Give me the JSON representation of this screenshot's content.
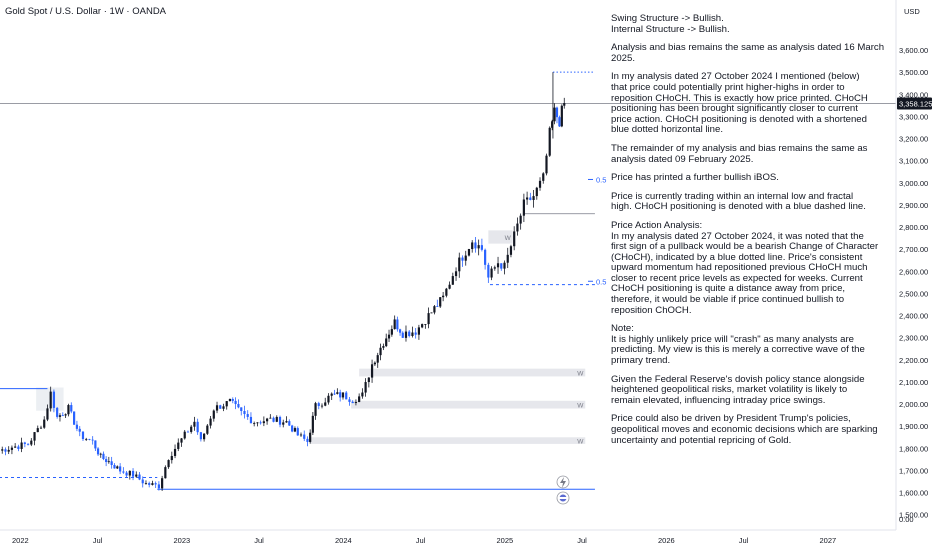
{
  "header": {
    "title": "Gold Spot / U.S. Dollar · 1W · OANDA"
  },
  "axis": {
    "currency": "USD"
  },
  "chart_data": {
    "type": "candlestick",
    "title": "Gold Spot / U.S. Dollar · 1W · OANDA",
    "ylabel": "USD",
    "ylim": [
      1450,
      3680
    ],
    "y_ticks": [
      "3,600.00",
      "3,500.00",
      "3,400.00",
      "3,300.00",
      "3,200.00",
      "3,100.00",
      "3,000.00",
      "2,900.00",
      "2,800.00",
      "2,700.00",
      "2,600.00",
      "2,500.00",
      "2,400.00",
      "2,300.00",
      "2,200.00",
      "2,100.00",
      "2,000.00",
      "1,900.00",
      "1,800.00",
      "1,700.00",
      "1,600.00",
      "1,500.00"
    ],
    "y_tick_values": [
      3600,
      3500,
      3400,
      3300,
      3200,
      3100,
      3000,
      2900,
      2800,
      2700,
      2600,
      2500,
      2400,
      2300,
      2200,
      2100,
      2000,
      1900,
      1800,
      1700,
      1600,
      1500
    ],
    "extra_tick": "0.00",
    "x_ticks": [
      {
        "label": "2022",
        "t": 2022.0
      },
      {
        "label": "Jul",
        "t": 2022.5
      },
      {
        "label": "2023",
        "t": 2023.0
      },
      {
        "label": "Jul",
        "t": 2023.5
      },
      {
        "label": "2024",
        "t": 2024.0
      },
      {
        "label": "Jul",
        "t": 2024.5
      },
      {
        "label": "2025",
        "t": 2025.0
      },
      {
        "label": "Jul",
        "t": 2025.5
      },
      {
        "label": "2026",
        "t": 2026.0
      },
      {
        "label": "Jul",
        "t": 2026.5
      },
      {
        "label": "2027",
        "t": 2027.0
      }
    ],
    "last_price": 3358.125,
    "last_price_label": "3,358.125",
    "key_points": [
      {
        "t": 2021.87,
        "price": 1790
      },
      {
        "t": 2021.95,
        "price": 1805
      },
      {
        "t": 2022.05,
        "price": 1820
      },
      {
        "t": 2022.15,
        "price": 1930
      },
      {
        "t": 2022.19,
        "price": 2050
      },
      {
        "t": 2022.23,
        "price": 1940
      },
      {
        "t": 2022.3,
        "price": 1980
      },
      {
        "t": 2022.37,
        "price": 1860
      },
      {
        "t": 2022.45,
        "price": 1830
      },
      {
        "t": 2022.5,
        "price": 1760
      },
      {
        "t": 2022.55,
        "price": 1740
      },
      {
        "t": 2022.62,
        "price": 1700
      },
      {
        "t": 2022.7,
        "price": 1680
      },
      {
        "t": 2022.78,
        "price": 1640
      },
      {
        "t": 2022.86,
        "price": 1630
      },
      {
        "t": 2022.92,
        "price": 1760
      },
      {
        "t": 2023.0,
        "price": 1840
      },
      {
        "t": 2023.08,
        "price": 1920
      },
      {
        "t": 2023.12,
        "price": 1830
      },
      {
        "t": 2023.2,
        "price": 1980
      },
      {
        "t": 2023.3,
        "price": 2010
      },
      {
        "t": 2023.37,
        "price": 1960
      },
      {
        "t": 2023.45,
        "price": 1920
      },
      {
        "t": 2023.55,
        "price": 1930
      },
      {
        "t": 2023.65,
        "price": 1920
      },
      {
        "t": 2023.72,
        "price": 1860
      },
      {
        "t": 2023.78,
        "price": 1830
      },
      {
        "t": 2023.83,
        "price": 1990
      },
      {
        "t": 2023.93,
        "price": 2040
      },
      {
        "t": 2024.0,
        "price": 2040
      },
      {
        "t": 2024.06,
        "price": 2020
      },
      {
        "t": 2024.12,
        "price": 2040
      },
      {
        "t": 2024.18,
        "price": 2180
      },
      {
        "t": 2024.25,
        "price": 2280
      },
      {
        "t": 2024.32,
        "price": 2370
      },
      {
        "t": 2024.37,
        "price": 2320
      },
      {
        "t": 2024.45,
        "price": 2330
      },
      {
        "t": 2024.53,
        "price": 2400
      },
      {
        "t": 2024.62,
        "price": 2480
      },
      {
        "t": 2024.7,
        "price": 2620
      },
      {
        "t": 2024.8,
        "price": 2740
      },
      {
        "t": 2024.86,
        "price": 2700
      },
      {
        "t": 2024.9,
        "price": 2570
      },
      {
        "t": 2024.96,
        "price": 2640
      },
      {
        "t": 2025.0,
        "price": 2620
      },
      {
        "t": 2025.06,
        "price": 2760
      },
      {
        "t": 2025.12,
        "price": 2900
      },
      {
        "t": 2025.18,
        "price": 2940
      },
      {
        "t": 2025.24,
        "price": 3020
      },
      {
        "t": 2025.28,
        "price": 3220
      },
      {
        "t": 2025.31,
        "price": 3320
      },
      {
        "t": 2025.34,
        "price": 3280
      },
      {
        "t": 2025.37,
        "price": 3360
      }
    ],
    "levels": [
      {
        "kind": "dotted",
        "price": 3500,
        "t0": 2025.3,
        "t1": 2025.56
      },
      {
        "kind": "dashed",
        "price": 2540,
        "t0": 2024.91,
        "t1": 2025.56
      },
      {
        "kind": "solid",
        "price": 2860,
        "t0": 2025.12,
        "t1": 2025.56
      },
      {
        "kind": "solid-blue",
        "price": 2070,
        "t0": 2021.87,
        "t1": 2022.17
      },
      {
        "kind": "dashed",
        "price": 1668,
        "t0": 2021.87,
        "t1": 2022.85
      },
      {
        "kind": "solid-blue",
        "price": 1615,
        "t0": 2022.85,
        "t1": 2025.56
      }
    ],
    "fib_labels": [
      {
        "label": "0.5",
        "price": 3015
      },
      {
        "label": "0.5",
        "price": 2555
      }
    ],
    "zones": [
      {
        "label": "W",
        "top": 2160,
        "bottom": 2125,
        "t0": 2024.1,
        "t1": 2025.5
      },
      {
        "label": "W",
        "top": 2015,
        "bottom": 1980,
        "t0": 2024.05,
        "t1": 2025.5
      },
      {
        "label": "W",
        "top": 1850,
        "bottom": 1820,
        "t0": 2023.8,
        "t1": 2025.5
      },
      {
        "label": "W",
        "top": 2785,
        "bottom": 2725,
        "t0": 2024.9,
        "t1": 2025.05
      }
    ]
  },
  "notes": [
    {
      "lines": [
        "Swing Structure -> Bullish.",
        "Internal Structure -> Bullish."
      ]
    },
    {
      "lines": [
        "Analysis and bias remains the same as analysis dated 16 March",
        "2025."
      ]
    },
    {
      "lines": [
        "In my analysis dated 27 October 2024 I mentioned (below)",
        "that price could potentially print higher-highs in order to",
        "reposition CHoCH.  This is exactly how price printed.  CHoCH",
        "positioning has been brought significantly closer to current",
        "price action.  CHoCH positioning is denoted with a shortened",
        "blue dotted horizontal line."
      ]
    },
    {
      "lines": [
        "The remainder of my analysis and bias remains the same as",
        "analysis dated 09 February 2025."
      ]
    },
    {
      "lines": [
        "Price has printed a further bullish iBOS."
      ]
    },
    {
      "lines": [
        "Price is currently trading within an internal low and fractal",
        "high.  CHoCH positioning is denoted with a blue dashed line."
      ]
    },
    {
      "lines": [
        "Price Action Analysis:",
        "In my analysis dated 27 October 2024, it was noted that the",
        "first sign of a pullback would be a bearish Change of Character",
        "(CHoCH), indicated by a blue dotted line. Price's consistent",
        "upward momentum had repositioned previous CHoCH much",
        "closer to recent price levels as expected for weeks. Current",
        "CHoCH positioning is quite a distance away from price,",
        "therefore, it would be viable if price continued bullish to",
        "reposition ChOCH."
      ]
    },
    {
      "lines": [
        "Note:",
        "It is highly unlikely price will \"crash\" as many analysts are",
        "predicting.  My view is this is merely a corrective wave of the",
        "primary trend."
      ]
    },
    {
      "lines": [
        "Given the Federal Reserve's dovish policy stance alongside",
        "heightened geopolitical risks, market volatility is likely to",
        "remain elevated, influencing intraday price swings."
      ]
    },
    {
      "lines": [
        "Price could also be driven by President Trump's policies,",
        "geopolitical moves and economic decisions which are sparking",
        "uncertainty and potential repricing of Gold."
      ]
    }
  ],
  "colors": {
    "up": "#131722",
    "down": "#2962ff",
    "grid": "#f0f3fa",
    "zone": "#d1d4dc",
    "price_line": "#787b86",
    "axis_text": "#131722"
  }
}
